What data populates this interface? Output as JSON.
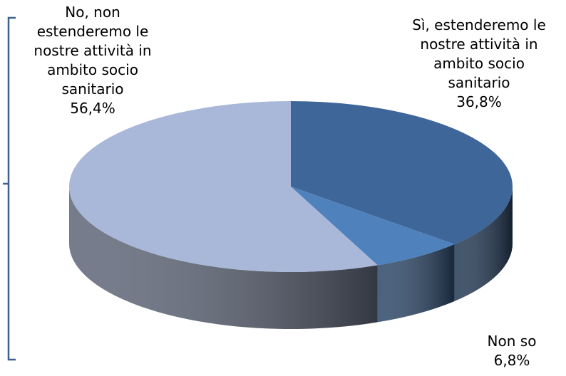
{
  "chart_data": {
    "type": "pie",
    "categories": [
      "Sì, estenderemo le nostre attività in ambito socio sanitario",
      "Non so",
      "No, non estenderemo le nostre attività in ambito socio sanitario"
    ],
    "values": [
      36.8,
      6.8,
      56.4
    ],
    "value_labels": [
      "36,8%",
      "6,8%",
      "56,4%"
    ],
    "colors": [
      "#3e6699",
      "#4f81bd",
      "#a9b8d9"
    ]
  }
}
